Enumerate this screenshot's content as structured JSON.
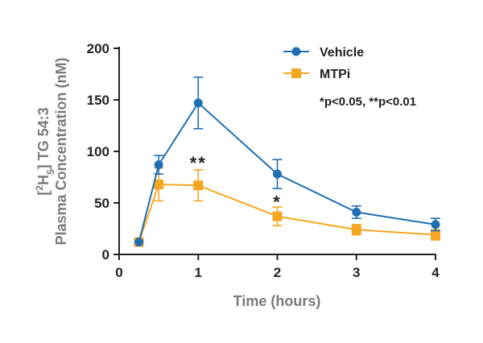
{
  "chart_data": {
    "type": "line",
    "xlabel": "Time (hours)",
    "ylabel_line1_parts": [
      "[",
      "2",
      "H",
      "5",
      "] TG 54:3"
    ],
    "ylabel_line2": "Plasma Concentration (nM)",
    "xlim": [
      0,
      4
    ],
    "ylim": [
      0,
      200
    ],
    "x_ticks": [
      0,
      1,
      2,
      3,
      4
    ],
    "y_ticks": [
      0,
      50,
      100,
      150,
      200
    ],
    "grid": false,
    "legend_position": "top-right",
    "series": [
      {
        "name": "Vehicle",
        "color": "#1f6fb2",
        "marker": "circle",
        "x": [
          0.25,
          0.5,
          1,
          2,
          3,
          4
        ],
        "y": [
          12,
          87,
          147,
          78,
          41,
          29
        ],
        "err": [
          0,
          9,
          25,
          14,
          6,
          6
        ]
      },
      {
        "name": "MTPi",
        "color": "#f5a623",
        "marker": "square",
        "x": [
          0.25,
          0.5,
          1,
          2,
          3,
          4
        ],
        "y": [
          12,
          68,
          67,
          37,
          24,
          19
        ],
        "err": [
          0,
          16,
          15,
          9,
          5,
          5
        ]
      }
    ],
    "annotations": [
      {
        "text": "**",
        "x": 1,
        "y": 89
      },
      {
        "text": "*",
        "x": 2,
        "y": 51
      }
    ],
    "significance_note": "*p<0.05, **p<0.01"
  }
}
